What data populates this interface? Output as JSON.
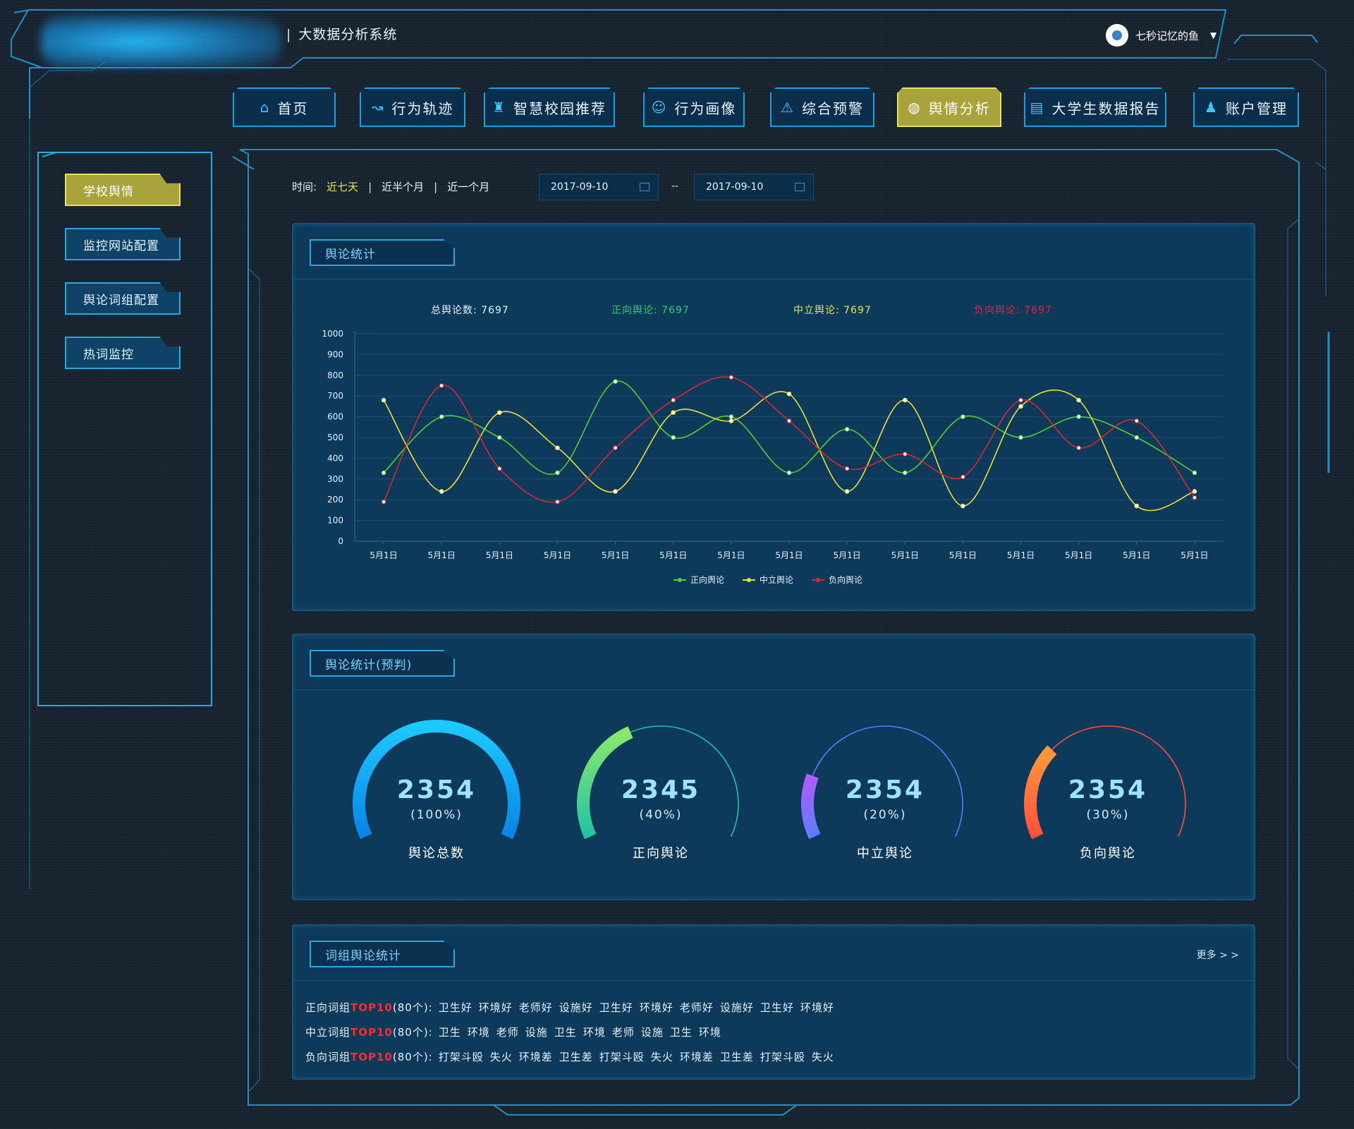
{
  "header": {
    "system_title": "大数据分析系统",
    "separator": "|"
  },
  "user": {
    "name": "七秒记忆的鱼",
    "caret": "▼"
  },
  "nav": [
    {
      "label": "首页",
      "icon": "home-icon",
      "glyph": "⌂",
      "active": false
    },
    {
      "label": "行为轨迹",
      "icon": "track-icon",
      "glyph": "↝",
      "active": false
    },
    {
      "label": "智慧校园推荐",
      "icon": "campus-icon",
      "glyph": "♜",
      "active": false
    },
    {
      "label": "行为画像",
      "icon": "portrait-icon",
      "glyph": "☺",
      "active": false
    },
    {
      "label": "综合预警",
      "icon": "alarm-icon",
      "glyph": "⚠",
      "active": false
    },
    {
      "label": "舆情分析",
      "icon": "opinion-icon",
      "glyph": "◍",
      "active": true
    },
    {
      "label": "大学生数据报告",
      "icon": "report-icon",
      "glyph": "▤",
      "active": false
    },
    {
      "label": "账户管理",
      "icon": "account-icon",
      "glyph": "♟",
      "active": false
    }
  ],
  "sidebar": [
    {
      "label": "学校舆情",
      "active": true
    },
    {
      "label": "监控网站配置",
      "active": false
    },
    {
      "label": "舆论词组配置",
      "active": false
    },
    {
      "label": "热词监控",
      "active": false
    }
  ],
  "filter": {
    "label": "时间:",
    "options": [
      "近七天",
      "近半个月",
      "近一个月"
    ],
    "bar": "|",
    "start_date": "2017-09-10",
    "end_date": "2017-09-10",
    "dash": "--"
  },
  "panel1": {
    "title": "舆论统计",
    "stats": [
      {
        "text": "总舆论数: 7697",
        "color": "#e6f3ff"
      },
      {
        "text": "正向舆论: 7697",
        "color": "#22d36a"
      },
      {
        "text": "中立舆论: 7697",
        "color": "#e8e35a"
      },
      {
        "text": "负向舆论: 7697",
        "color": "#e0272f"
      }
    ]
  },
  "chart_data": {
    "type": "line",
    "categories": [
      "5月1日",
      "5月1日",
      "5月1日",
      "5月1日",
      "5月1日",
      "5月1日",
      "5月1日",
      "5月1日",
      "5月1日",
      "5月1日",
      "5月1日",
      "5月1日",
      "5月1日",
      "5月1日",
      "5月1日"
    ],
    "ylim": [
      0,
      1000
    ],
    "yticks": [
      "1000",
      "900",
      "800",
      "700",
      "600",
      "500",
      "400",
      "300",
      "200",
      "100",
      "0"
    ],
    "legend_position": "bottom",
    "grid": true,
    "series": [
      {
        "name": "正向舆论",
        "color": "#4fd12d",
        "values": [
          330,
          600,
          500,
          330,
          770,
          500,
          600,
          330,
          540,
          330,
          600,
          500,
          600,
          500,
          330
        ]
      },
      {
        "name": "中立舆论",
        "color": "#e8e035",
        "values": [
          680,
          240,
          620,
          450,
          240,
          620,
          580,
          710,
          240,
          680,
          170,
          650,
          680,
          170,
          240
        ]
      },
      {
        "name": "负向舆论",
        "color": "#d8272f",
        "values": [
          190,
          750,
          350,
          190,
          450,
          680,
          790,
          580,
          350,
          420,
          310,
          680,
          450,
          580,
          210
        ]
      }
    ]
  },
  "panel2": {
    "title": "舆论统计(预判)",
    "gauges": [
      {
        "value": "2354",
        "percent": "(100%)",
        "label": "舆论总数",
        "fraction": 1.0,
        "c1": "#1cc9ff",
        "c2": "#0a84e6"
      },
      {
        "value": "2345",
        "percent": "(40%)",
        "label": "正向舆论",
        "fraction": 0.4,
        "c1": "#8ae86d",
        "c2": "#22c3a2"
      },
      {
        "value": "2354",
        "percent": "(20%)",
        "label": "中立舆论",
        "fraction": 0.2,
        "c1": "#b15cff",
        "c2": "#5e7bff"
      },
      {
        "value": "2354",
        "percent": "(30%)",
        "label": "负向舆论",
        "fraction": 0.3,
        "c1": "#ff9a3a",
        "c2": "#ff4e3c"
      }
    ]
  },
  "panel3": {
    "title": "词组舆论统计",
    "more": "更多 > >",
    "rows": [
      {
        "prefix": "正向词组",
        "top": "TOP10",
        "suffix": "(80个):",
        "words": [
          "卫生好",
          "环境好",
          "老师好",
          "设施好",
          "卫生好",
          "环境好",
          "老师好",
          "设施好",
          "卫生好",
          "环境好"
        ]
      },
      {
        "prefix": "中立词组",
        "top": "TOP10",
        "suffix": "(80个):",
        "words": [
          "卫生",
          "环境",
          "老师",
          "设施",
          "卫生",
          "环境",
          "老师",
          "设施",
          "卫生",
          "环境"
        ]
      },
      {
        "prefix": "负向词组",
        "top": "TOP10",
        "suffix": "(80个):",
        "words": [
          "打架斗殴",
          "失火",
          "环境差",
          "卫生差",
          "打架斗殴",
          "失火",
          "环境差",
          "卫生差",
          "打架斗殴",
          "失火"
        ]
      }
    ]
  }
}
